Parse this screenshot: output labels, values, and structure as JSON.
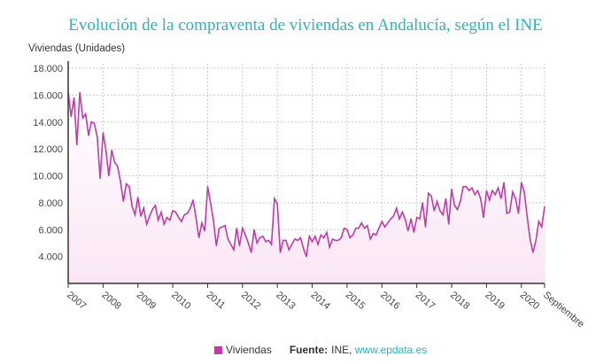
{
  "chart_data": {
    "type": "area",
    "title": "Evolución de la compraventa de viviendas en Andalucía, según el INE",
    "ylabel": "Viviendas (Unidades)",
    "xlabel": "",
    "ylim": [
      2000,
      18000
    ],
    "yticks": [
      "4.000",
      "6.000",
      "8.000",
      "10.000",
      "12.000",
      "14.000",
      "16.000",
      "18.000"
    ],
    "ytick_values": [
      4000,
      6000,
      8000,
      10000,
      12000,
      14000,
      16000,
      18000
    ],
    "xticks": [
      "2007",
      "2008",
      "2009",
      "2010",
      "2011",
      "2012",
      "2013",
      "2014",
      "2015",
      "2016",
      "2017",
      "2018",
      "2019",
      "2020",
      "Septiembre"
    ],
    "x_start": "2007-01",
    "x_end": "2020-09",
    "grid": true,
    "legend": "bottom",
    "series": [
      {
        "name": "Viviendas",
        "color": "#c03aa8",
        "fill": "#fbe6f5",
        "values": [
          16200,
          14400,
          15800,
          12300,
          16200,
          14300,
          14600,
          13000,
          14000,
          13900,
          12900,
          9800,
          13200,
          11900,
          10000,
          11900,
          11000,
          10700,
          9600,
          8100,
          9400,
          9200,
          7700,
          7100,
          8400,
          7000,
          7600,
          6400,
          7000,
          7500,
          7800,
          6700,
          7300,
          6400,
          6900,
          6700,
          7400,
          7300,
          6900,
          6600,
          7100,
          7200,
          7600,
          8200,
          6900,
          5400,
          6500,
          5900,
          9200,
          8000,
          6700,
          4800,
          6100,
          6200,
          6300,
          5300,
          4900,
          4500,
          6100,
          4800,
          6100,
          5600,
          5000,
          4300,
          6000,
          5000,
          5400,
          5500,
          5100,
          5200,
          4900,
          8300,
          7900,
          4300,
          5200,
          5200,
          4500,
          4900,
          5300,
          5200,
          5400,
          4600,
          4000,
          5500,
          5100,
          5500,
          4900,
          5600,
          5400,
          5800,
          4700,
          5300,
          5200,
          5200,
          5400,
          6100,
          6000,
          5400,
          5600,
          6100,
          6100,
          6500,
          6100,
          6300,
          5300,
          5700,
          5600,
          6100,
          6600,
          6200,
          6500,
          6800,
          7000,
          7600,
          6800,
          7300,
          6800,
          5900,
          6800,
          5800,
          6900,
          6800,
          8000,
          6200,
          8700,
          8500,
          7400,
          8100,
          7400,
          7100,
          8300,
          6400,
          9000,
          7800,
          7500,
          8100,
          9200,
          9200,
          8900,
          9100,
          8600,
          8900,
          8300,
          6900,
          8900,
          8200,
          8900,
          8600,
          9100,
          8300,
          9500,
          7200,
          7300,
          8800,
          8300,
          7200,
          9500,
          8800,
          7000,
          5300,
          4300,
          5200,
          6600,
          6200,
          7700
        ]
      }
    ],
    "source_label": "Fuente:",
    "source_text": "INE,",
    "source_link": "www.epdata.es"
  }
}
